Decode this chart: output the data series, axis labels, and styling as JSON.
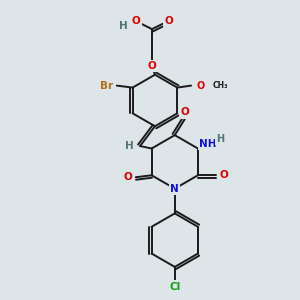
{
  "bg_color": "#dde5e8",
  "bond_color": "#1a1a1a",
  "atom_colors": {
    "O": "#dd0000",
    "N": "#1010dd",
    "Br": "#b07020",
    "Cl": "#10a010",
    "H": "#507575",
    "C": "#1a1a1a"
  },
  "figsize": [
    3.0,
    3.0
  ],
  "dpi": 100
}
